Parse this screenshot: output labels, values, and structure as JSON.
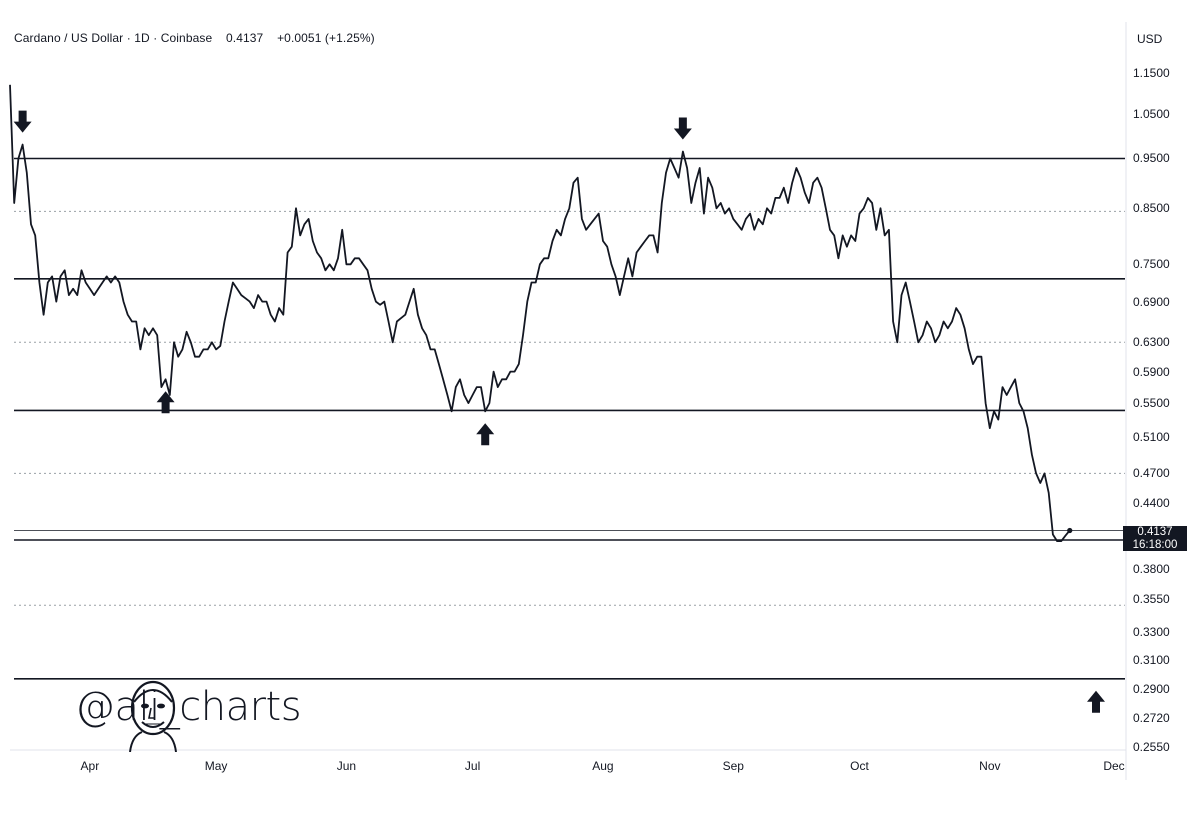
{
  "header": {
    "symbol": "Cardano / US Dollar · 1D · Coinbase",
    "last": "0.4137",
    "change": "+0.0051 (+1.25%)"
  },
  "axis": {
    "currency": "USD"
  },
  "last_price_badge": {
    "price": "0.4137",
    "countdown": "16:18:00"
  },
  "watermark": {
    "handle": "@ali_charts"
  },
  "colors": {
    "line": "#131722",
    "background": "#ffffff",
    "badge": "#131722",
    "dotted": "#9aa0a6"
  },
  "chart_data": {
    "type": "line",
    "title": "Cardano / US Dollar · 1D · Coinbase",
    "y_scale": "log",
    "ylim": [
      0.255,
      1.15
    ],
    "yticks": [
      "1.1500",
      "1.0500",
      "0.9500",
      "0.8500",
      "0.7500",
      "0.6900",
      "0.6300",
      "0.5900",
      "0.5500",
      "0.5100",
      "0.4700",
      "0.4400",
      "0.3800",
      "0.3550",
      "0.3300",
      "0.3100",
      "0.2900",
      "0.2720",
      "0.2550"
    ],
    "xticks": [
      "Apr",
      "May",
      "Jun",
      "Jul",
      "Aug",
      "Sep",
      "Oct",
      "Nov",
      "Dec"
    ],
    "series": [
      {
        "points": [
          [
            "2024-03-13",
            1.12
          ],
          [
            "2024-03-14",
            0.86
          ],
          [
            "2024-03-15",
            0.95
          ],
          [
            "2024-03-16",
            0.98
          ],
          [
            "2024-03-17",
            0.92
          ],
          [
            "2024-03-18",
            0.82
          ],
          [
            "2024-03-19",
            0.8
          ],
          [
            "2024-03-20",
            0.72
          ],
          [
            "2024-03-21",
            0.67
          ],
          [
            "2024-03-22",
            0.72
          ],
          [
            "2024-03-23",
            0.73
          ],
          [
            "2024-03-24",
            0.69
          ],
          [
            "2024-03-25",
            0.73
          ],
          [
            "2024-03-26",
            0.74
          ],
          [
            "2024-03-27",
            0.7
          ],
          [
            "2024-03-28",
            0.71
          ],
          [
            "2024-03-29",
            0.7
          ],
          [
            "2024-03-30",
            0.74
          ],
          [
            "2024-03-31",
            0.72
          ],
          [
            "2024-04-01",
            0.71
          ],
          [
            "2024-04-02",
            0.7
          ],
          [
            "2024-04-03",
            0.71
          ],
          [
            "2024-04-04",
            0.72
          ],
          [
            "2024-04-05",
            0.73
          ],
          [
            "2024-04-06",
            0.72
          ],
          [
            "2024-04-07",
            0.73
          ],
          [
            "2024-04-08",
            0.72
          ],
          [
            "2024-04-09",
            0.69
          ],
          [
            "2024-04-10",
            0.67
          ],
          [
            "2024-04-11",
            0.66
          ],
          [
            "2024-04-12",
            0.66
          ],
          [
            "2024-04-13",
            0.62
          ],
          [
            "2024-04-14",
            0.65
          ],
          [
            "2024-04-15",
            0.64
          ],
          [
            "2024-04-16",
            0.65
          ],
          [
            "2024-04-17",
            0.64
          ],
          [
            "2024-04-18",
            0.57
          ],
          [
            "2024-04-19",
            0.58
          ],
          [
            "2024-04-20",
            0.56
          ],
          [
            "2024-04-21",
            0.63
          ],
          [
            "2024-04-22",
            0.61
          ],
          [
            "2024-04-23",
            0.62
          ],
          [
            "2024-04-24",
            0.645
          ],
          [
            "2024-04-25",
            0.63
          ],
          [
            "2024-04-26",
            0.61
          ],
          [
            "2024-04-27",
            0.61
          ],
          [
            "2024-04-28",
            0.62
          ],
          [
            "2024-04-29",
            0.62
          ],
          [
            "2024-04-30",
            0.63
          ],
          [
            "2024-05-01",
            0.62
          ],
          [
            "2024-05-02",
            0.625
          ],
          [
            "2024-05-03",
            0.66
          ],
          [
            "2024-05-04",
            0.69
          ],
          [
            "2024-05-05",
            0.72
          ],
          [
            "2024-05-06",
            0.71
          ],
          [
            "2024-05-07",
            0.7
          ],
          [
            "2024-05-08",
            0.695
          ],
          [
            "2024-05-09",
            0.69
          ],
          [
            "2024-05-10",
            0.68
          ],
          [
            "2024-05-11",
            0.7
          ],
          [
            "2024-05-12",
            0.69
          ],
          [
            "2024-05-13",
            0.69
          ],
          [
            "2024-05-14",
            0.67
          ],
          [
            "2024-05-15",
            0.66
          ],
          [
            "2024-05-16",
            0.68
          ],
          [
            "2024-05-17",
            0.67
          ],
          [
            "2024-05-18",
            0.77
          ],
          [
            "2024-05-19",
            0.78
          ],
          [
            "2024-05-20",
            0.85
          ],
          [
            "2024-05-21",
            0.8
          ],
          [
            "2024-05-22",
            0.82
          ],
          [
            "2024-05-23",
            0.83
          ],
          [
            "2024-05-24",
            0.79
          ],
          [
            "2024-05-25",
            0.77
          ],
          [
            "2024-05-26",
            0.76
          ],
          [
            "2024-05-27",
            0.74
          ],
          [
            "2024-05-28",
            0.75
          ],
          [
            "2024-05-29",
            0.74
          ],
          [
            "2024-05-30",
            0.76
          ],
          [
            "2024-05-31",
            0.81
          ],
          [
            "2024-06-01",
            0.75
          ],
          [
            "2024-06-02",
            0.75
          ],
          [
            "2024-06-03",
            0.76
          ],
          [
            "2024-06-04",
            0.76
          ],
          [
            "2024-06-05",
            0.75
          ],
          [
            "2024-06-06",
            0.74
          ],
          [
            "2024-06-07",
            0.71
          ],
          [
            "2024-06-08",
            0.69
          ],
          [
            "2024-06-09",
            0.685
          ],
          [
            "2024-06-10",
            0.69
          ],
          [
            "2024-06-11",
            0.66
          ],
          [
            "2024-06-12",
            0.63
          ],
          [
            "2024-06-13",
            0.66
          ],
          [
            "2024-06-14",
            0.665
          ],
          [
            "2024-06-15",
            0.67
          ],
          [
            "2024-06-16",
            0.69
          ],
          [
            "2024-06-17",
            0.71
          ],
          [
            "2024-06-18",
            0.67
          ],
          [
            "2024-06-19",
            0.65
          ],
          [
            "2024-06-20",
            0.64
          ],
          [
            "2024-06-21",
            0.62
          ],
          [
            "2024-06-22",
            0.62
          ],
          [
            "2024-06-23",
            0.6
          ],
          [
            "2024-06-24",
            0.58
          ],
          [
            "2024-06-25",
            0.56
          ],
          [
            "2024-06-26",
            0.54
          ],
          [
            "2024-06-27",
            0.57
          ],
          [
            "2024-06-28",
            0.58
          ],
          [
            "2024-06-29",
            0.56
          ],
          [
            "2024-06-30",
            0.55
          ],
          [
            "2024-07-01",
            0.56
          ],
          [
            "2024-07-02",
            0.57
          ],
          [
            "2024-07-03",
            0.57
          ],
          [
            "2024-07-04",
            0.54
          ],
          [
            "2024-07-05",
            0.55
          ],
          [
            "2024-07-06",
            0.59
          ],
          [
            "2024-07-07",
            0.57
          ],
          [
            "2024-07-08",
            0.58
          ],
          [
            "2024-07-09",
            0.58
          ],
          [
            "2024-07-10",
            0.59
          ],
          [
            "2024-07-11",
            0.59
          ],
          [
            "2024-07-12",
            0.6
          ],
          [
            "2024-07-13",
            0.64
          ],
          [
            "2024-07-14",
            0.69
          ],
          [
            "2024-07-15",
            0.72
          ],
          [
            "2024-07-16",
            0.72
          ],
          [
            "2024-07-17",
            0.75
          ],
          [
            "2024-07-18",
            0.76
          ],
          [
            "2024-07-19",
            0.76
          ],
          [
            "2024-07-20",
            0.79
          ],
          [
            "2024-07-21",
            0.81
          ],
          [
            "2024-07-22",
            0.8
          ],
          [
            "2024-07-23",
            0.83
          ],
          [
            "2024-07-24",
            0.85
          ],
          [
            "2024-07-25",
            0.9
          ],
          [
            "2024-07-26",
            0.91
          ],
          [
            "2024-07-27",
            0.83
          ],
          [
            "2024-07-28",
            0.81
          ],
          [
            "2024-07-29",
            0.82
          ],
          [
            "2024-07-30",
            0.83
          ],
          [
            "2024-07-31",
            0.84
          ],
          [
            "2024-08-01",
            0.79
          ],
          [
            "2024-08-02",
            0.78
          ],
          [
            "2024-08-03",
            0.75
          ],
          [
            "2024-08-04",
            0.73
          ],
          [
            "2024-08-05",
            0.7
          ],
          [
            "2024-08-06",
            0.73
          ],
          [
            "2024-08-07",
            0.76
          ],
          [
            "2024-08-08",
            0.73
          ],
          [
            "2024-08-09",
            0.77
          ],
          [
            "2024-08-10",
            0.78
          ],
          [
            "2024-08-11",
            0.79
          ],
          [
            "2024-08-12",
            0.8
          ],
          [
            "2024-08-13",
            0.8
          ],
          [
            "2024-08-14",
            0.77
          ],
          [
            "2024-08-15",
            0.86
          ],
          [
            "2024-08-16",
            0.92
          ],
          [
            "2024-08-17",
            0.95
          ],
          [
            "2024-08-18",
            0.93
          ],
          [
            "2024-08-19",
            0.91
          ],
          [
            "2024-08-20",
            0.965
          ],
          [
            "2024-08-21",
            0.93
          ],
          [
            "2024-08-22",
            0.86
          ],
          [
            "2024-08-23",
            0.9
          ],
          [
            "2024-08-24",
            0.93
          ],
          [
            "2024-08-25",
            0.84
          ],
          [
            "2024-08-26",
            0.91
          ],
          [
            "2024-08-27",
            0.89
          ],
          [
            "2024-08-28",
            0.85
          ],
          [
            "2024-08-29",
            0.86
          ],
          [
            "2024-08-30",
            0.84
          ],
          [
            "2024-08-31",
            0.85
          ],
          [
            "2024-09-01",
            0.83
          ],
          [
            "2024-09-02",
            0.82
          ],
          [
            "2024-09-03",
            0.81
          ],
          [
            "2024-09-04",
            0.83
          ],
          [
            "2024-09-05",
            0.84
          ],
          [
            "2024-09-06",
            0.81
          ],
          [
            "2024-09-07",
            0.83
          ],
          [
            "2024-09-08",
            0.82
          ],
          [
            "2024-09-09",
            0.85
          ],
          [
            "2024-09-10",
            0.84
          ],
          [
            "2024-09-11",
            0.87
          ],
          [
            "2024-09-12",
            0.87
          ],
          [
            "2024-09-13",
            0.89
          ],
          [
            "2024-09-14",
            0.86
          ],
          [
            "2024-09-15",
            0.9
          ],
          [
            "2024-09-16",
            0.93
          ],
          [
            "2024-09-17",
            0.91
          ],
          [
            "2024-09-18",
            0.88
          ],
          [
            "2024-09-19",
            0.86
          ],
          [
            "2024-09-20",
            0.9
          ],
          [
            "2024-09-21",
            0.91
          ],
          [
            "2024-09-22",
            0.89
          ],
          [
            "2024-09-23",
            0.85
          ],
          [
            "2024-09-24",
            0.81
          ],
          [
            "2024-09-25",
            0.8
          ],
          [
            "2024-09-26",
            0.76
          ],
          [
            "2024-09-27",
            0.8
          ],
          [
            "2024-09-28",
            0.78
          ],
          [
            "2024-09-29",
            0.8
          ],
          [
            "2024-09-30",
            0.79
          ],
          [
            "2024-10-01",
            0.84
          ],
          [
            "2024-10-02",
            0.85
          ],
          [
            "2024-10-03",
            0.87
          ],
          [
            "2024-10-04",
            0.86
          ],
          [
            "2024-10-05",
            0.81
          ],
          [
            "2024-10-06",
            0.85
          ],
          [
            "2024-10-07",
            0.8
          ],
          [
            "2024-10-08",
            0.81
          ],
          [
            "2024-10-09",
            0.66
          ],
          [
            "2024-10-10",
            0.63
          ],
          [
            "2024-10-11",
            0.7
          ],
          [
            "2024-10-12",
            0.72
          ],
          [
            "2024-10-13",
            0.69
          ],
          [
            "2024-10-14",
            0.66
          ],
          [
            "2024-10-15",
            0.63
          ],
          [
            "2024-10-16",
            0.64
          ],
          [
            "2024-10-17",
            0.66
          ],
          [
            "2024-10-18",
            0.65
          ],
          [
            "2024-10-19",
            0.63
          ],
          [
            "2024-10-20",
            0.64
          ],
          [
            "2024-10-21",
            0.66
          ],
          [
            "2024-10-22",
            0.65
          ],
          [
            "2024-10-23",
            0.66
          ],
          [
            "2024-10-24",
            0.68
          ],
          [
            "2024-10-25",
            0.67
          ],
          [
            "2024-10-26",
            0.65
          ],
          [
            "2024-10-27",
            0.62
          ],
          [
            "2024-10-28",
            0.6
          ],
          [
            "2024-10-29",
            0.61
          ],
          [
            "2024-10-30",
            0.61
          ],
          [
            "2024-10-31",
            0.55
          ],
          [
            "2024-11-01",
            0.52
          ],
          [
            "2024-11-02",
            0.54
          ],
          [
            "2024-11-03",
            0.53
          ],
          [
            "2024-11-04",
            0.57
          ],
          [
            "2024-11-05",
            0.56
          ],
          [
            "2024-11-06",
            0.57
          ],
          [
            "2024-11-07",
            0.58
          ],
          [
            "2024-11-08",
            0.55
          ],
          [
            "2024-11-09",
            0.54
          ],
          [
            "2024-11-10",
            0.52
          ],
          [
            "2024-11-11",
            0.49
          ],
          [
            "2024-11-12",
            0.47
          ],
          [
            "2024-11-13",
            0.46
          ],
          [
            "2024-11-14",
            0.47
          ],
          [
            "2024-11-15",
            0.45
          ],
          [
            "2024-11-16",
            0.41
          ],
          [
            "2024-11-17",
            0.404
          ],
          [
            "2024-11-18",
            0.404
          ],
          [
            "2024-11-19",
            0.409
          ],
          [
            "2024-11-20",
            0.4137
          ]
        ]
      }
    ],
    "horizontal_levels": {
      "solid": [
        0.95,
        0.726,
        0.541,
        0.405,
        0.297
      ],
      "dotted": [
        0.844,
        0.63,
        0.47,
        0.35
      ]
    },
    "markers": [
      {
        "date": "2024-03-16",
        "direction": "down"
      },
      {
        "date": "2024-04-19",
        "direction": "up"
      },
      {
        "date": "2024-07-04",
        "direction": "up"
      },
      {
        "date": "2024-08-20",
        "direction": "down"
      },
      {
        "date": "2024-11-20",
        "direction": "up",
        "anchor_price": 0.297
      }
    ],
    "grid": false,
    "last_value": 0.4137
  }
}
